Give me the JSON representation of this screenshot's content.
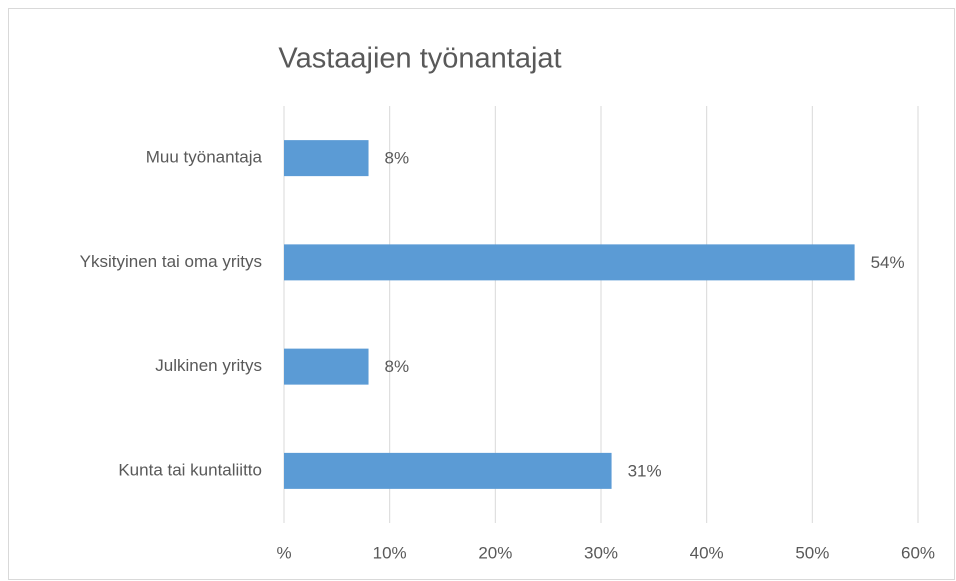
{
  "chart_data": {
    "type": "bar",
    "orientation": "horizontal",
    "title": "Vastaajien työnantajat",
    "categories": [
      "Muu työnantaja",
      "Yksityinen tai oma yritys",
      "Julkinen yritys",
      "Kunta tai kuntaliitto"
    ],
    "values": [
      8,
      54,
      8,
      31
    ],
    "value_labels": [
      "8%",
      "54%",
      "8%",
      "31%"
    ],
    "color": "#5b9bd5",
    "xlim": [
      0,
      60
    ],
    "xticks": [
      {
        "value": 0,
        "label": "%"
      },
      {
        "value": 10,
        "label": "10%"
      },
      {
        "value": 20,
        "label": "20%"
      },
      {
        "value": 30,
        "label": "30%"
      },
      {
        "value": 40,
        "label": "40%"
      },
      {
        "value": 50,
        "label": "50%"
      },
      {
        "value": 60,
        "label": "60%"
      }
    ],
    "grid": true
  }
}
